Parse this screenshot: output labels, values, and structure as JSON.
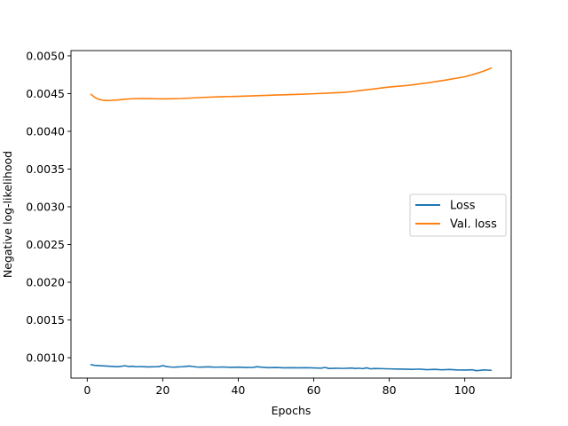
{
  "chart_data": {
    "type": "line",
    "title": "",
    "xlabel": "Epochs",
    "ylabel": "Negative log-likelihood",
    "xlim": [
      -4.3,
      112.3
    ],
    "ylim": [
      0.00073,
      0.00507
    ],
    "x_ticks": [
      0,
      20,
      40,
      60,
      80,
      100
    ],
    "x_tick_labels": [
      "0",
      "20",
      "40",
      "60",
      "80",
      "100"
    ],
    "y_ticks": [
      0.001,
      0.0015,
      0.002,
      0.0025,
      0.003,
      0.0035,
      0.004,
      0.0045,
      0.005
    ],
    "y_tick_labels": [
      "0.0010",
      "0.0015",
      "0.0020",
      "0.0025",
      "0.0030",
      "0.0035",
      "0.0040",
      "0.0045",
      "0.0050"
    ],
    "grid": false,
    "legend_position": "center-right",
    "series": [
      {
        "name": "Loss",
        "color": "#1f77b4",
        "x": [
          1,
          2,
          3,
          4,
          5,
          6,
          7,
          8,
          9,
          10,
          11,
          12,
          13,
          14,
          15,
          16,
          17,
          18,
          19,
          20,
          21,
          22,
          23,
          24,
          25,
          26,
          27,
          28,
          29,
          30,
          32,
          34,
          36,
          38,
          40,
          42,
          44,
          45,
          46,
          48,
          50,
          52,
          54,
          56,
          58,
          60,
          62,
          63,
          64,
          66,
          68,
          70,
          71,
          72,
          73,
          74,
          75,
          76,
          78,
          80,
          82,
          84,
          86,
          88,
          90,
          92,
          94,
          96,
          98,
          100,
          102,
          103,
          104,
          105,
          106,
          107
        ],
        "y": [
          0.000908,
          0.000898,
          0.000895,
          0.000892,
          0.000889,
          0.000887,
          0.000884,
          0.000881,
          0.000887,
          0.000893,
          0.000884,
          0.000887,
          0.00088,
          0.000883,
          0.000881,
          0.000878,
          0.000879,
          0.00088,
          0.000882,
          0.000895,
          0.000884,
          0.000877,
          0.000874,
          0.000878,
          0.00088,
          0.000884,
          0.000889,
          0.000883,
          0.000877,
          0.000875,
          0.000879,
          0.000874,
          0.000877,
          0.000872,
          0.000875,
          0.00087,
          0.000872,
          0.000881,
          0.000875,
          0.000868,
          0.00087,
          0.000866,
          0.000868,
          0.000866,
          0.000868,
          0.000864,
          0.000862,
          0.000871,
          0.000857,
          0.00086,
          0.000858,
          0.000863,
          0.000857,
          0.000861,
          0.000855,
          0.000866,
          0.000852,
          0.000857,
          0.000855,
          0.000852,
          0.00085,
          0.000848,
          0.000846,
          0.000849,
          0.000841,
          0.000845,
          0.00084,
          0.000844,
          0.000838,
          0.000837,
          0.00084,
          0.000828,
          0.000832,
          0.000838,
          0.000836,
          0.000833
        ]
      },
      {
        "name": "Val. loss",
        "color": "#ff7f0e",
        "x": [
          1,
          2,
          3,
          4,
          5,
          6,
          8,
          10,
          12,
          14,
          16,
          18,
          20,
          22,
          25,
          30,
          35,
          40,
          45,
          50,
          55,
          60,
          65,
          68,
          70,
          72,
          75,
          78,
          80,
          85,
          90,
          95,
          100,
          103,
          105,
          107
        ],
        "y": [
          0.00449,
          0.00445,
          0.004425,
          0.004413,
          0.004408,
          0.00441,
          0.004415,
          0.004425,
          0.004432,
          0.004435,
          0.004434,
          0.004432,
          0.00443,
          0.004431,
          0.004435,
          0.004448,
          0.004458,
          0.004464,
          0.004472,
          0.004481,
          0.004489,
          0.004498,
          0.004509,
          0.004516,
          0.004526,
          0.004538,
          0.004556,
          0.004575,
          0.004587,
          0.004609,
          0.004641,
          0.00468,
          0.004723,
          0.004765,
          0.004798,
          0.004838
        ]
      }
    ]
  }
}
